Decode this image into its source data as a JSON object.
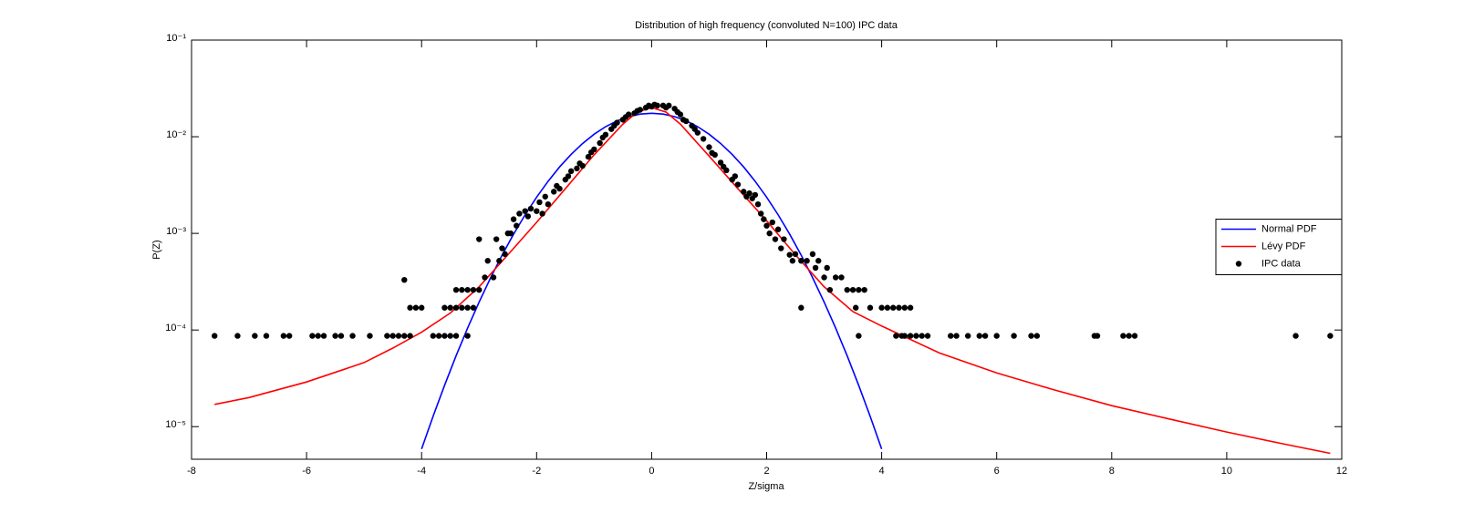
{
  "chart_data": {
    "type": "line",
    "title": "Distribution of high frequency (convoluted N=100) IPC data",
    "xlabel": "Z/sigma",
    "ylabel": "P(Z)",
    "xlim": [
      -8,
      12
    ],
    "xticks": [
      -8,
      -6,
      -4,
      -2,
      0,
      2,
      4,
      6,
      8,
      10,
      12
    ],
    "ylim": [
      4.6e-06,
      0.1
    ],
    "log_y": true,
    "yticks": [
      {
        "value": 1e-05,
        "label": "10⁻⁵"
      },
      {
        "value": 0.0001,
        "label": "10⁻⁴"
      },
      {
        "value": 0.001,
        "label": "10⁻³"
      },
      {
        "value": 0.01,
        "label": "10⁻²"
      },
      {
        "value": 0.1,
        "label": "10⁻¹"
      }
    ],
    "grid": false,
    "legend": "east",
    "series": [
      {
        "name": "Normal PDF",
        "color": "#0000ff",
        "style": "line",
        "x": [
          -4.0,
          -3.8,
          -3.6,
          -3.4,
          -3.2,
          -3.0,
          -2.8,
          -2.6,
          -2.4,
          -2.2,
          -2.0,
          -1.8,
          -1.6,
          -1.4,
          -1.2,
          -1.0,
          -0.8,
          -0.6,
          -0.4,
          -0.2,
          0,
          0.2,
          0.4,
          0.6,
          0.8,
          1.0,
          1.2,
          1.4,
          1.6,
          1.8,
          2.0,
          2.2,
          2.4,
          2.6,
          2.8,
          3.0,
          3.2,
          3.4,
          3.6,
          3.8,
          4.0
        ],
        "values": [
          5.87e-06,
          1.28e-05,
          2.68e-05,
          5.41e-05,
          0.0001046,
          0.0001944,
          0.000347,
          0.000596,
          0.000982,
          0.001556,
          0.002368,
          0.00346,
          0.00487,
          0.00657,
          0.00852,
          0.01061,
          0.01271,
          0.01462,
          0.01615,
          0.01715,
          0.0175,
          0.01715,
          0.01615,
          0.01462,
          0.01271,
          0.01061,
          0.00852,
          0.00657,
          0.00487,
          0.00346,
          0.002368,
          0.001556,
          0.000982,
          0.000596,
          0.000347,
          0.0001944,
          0.0001046,
          5.41e-05,
          2.68e-05,
          1.28e-05,
          5.87e-06
        ]
      },
      {
        "name": "Lévy PDF",
        "color": "#ff0000",
        "style": "line",
        "x": [
          -7.6,
          -7,
          -6,
          -5,
          -4.5,
          -4,
          -3.5,
          -3,
          -2.5,
          -2,
          -1.5,
          -1,
          -0.5,
          -0.25,
          0,
          0.25,
          0.5,
          1,
          1.5,
          2,
          2.5,
          3,
          3.5,
          4,
          5,
          6,
          7,
          8,
          9,
          10,
          11,
          11.8
        ],
        "values": [
          1.7e-05,
          2e-05,
          2.9e-05,
          4.6e-05,
          6.5e-05,
          9.5e-05,
          0.00015,
          0.00028,
          0.0006,
          0.0013,
          0.0029,
          0.0065,
          0.0135,
          0.018,
          0.02,
          0.018,
          0.0135,
          0.0063,
          0.0029,
          0.00135,
          0.0006,
          0.00028,
          0.000155,
          0.00011,
          5.8e-05,
          3.6e-05,
          2.4e-05,
          1.65e-05,
          1.2e-05,
          8.8e-06,
          6.6e-06,
          5.3e-06
        ]
      },
      {
        "name": "IPC data",
        "color": "#000000",
        "style": "marker",
        "x": [
          -7.6,
          -7.2,
          -6.9,
          -6.7,
          -6.4,
          -6.3,
          -5.9,
          -5.8,
          -5.7,
          -5.5,
          -5.4,
          -5.2,
          -4.9,
          -4.6,
          -4.5,
          -4.4,
          -4.3,
          -4.2,
          -3.8,
          -3.7,
          -3.6,
          -3.5,
          -3.4,
          -3.2,
          -4.3,
          -4.2,
          -4.1,
          -4.0,
          -3.6,
          -3.5,
          -3.4,
          -3.3,
          -3.2,
          -3.1,
          -3.4,
          -3.3,
          -3.2,
          -3.1,
          -3.0,
          -2.9,
          -2.75,
          -2.55,
          -2.65,
          -2.85,
          -2.7,
          -2.6,
          -3.0,
          -2.45,
          -2.5,
          -2.4,
          -2.35,
          -2.3,
          -2.2,
          -2.15,
          -2.1,
          -2.0,
          -1.95,
          -1.9,
          -1.85,
          -1.8,
          -1.7,
          -1.65,
          -1.6,
          -1.5,
          -1.45,
          -1.4,
          -1.3,
          -1.25,
          -1.2,
          -1.1,
          -1.05,
          -1.0,
          -0.9,
          -0.85,
          -0.8,
          -0.7,
          -0.65,
          -0.6,
          -0.5,
          -0.45,
          -0.4,
          -0.3,
          -0.25,
          -0.2,
          -0.1,
          -0.05,
          0,
          0.05,
          0.1,
          0.2,
          0.25,
          0.3,
          0.4,
          0.45,
          0.5,
          0.55,
          0.6,
          0.7,
          0.75,
          0.8,
          0.9,
          1.0,
          1.05,
          1.1,
          1.2,
          1.25,
          1.3,
          1.4,
          1.45,
          1.5,
          1.6,
          1.65,
          1.7,
          1.75,
          1.8,
          1.85,
          1.9,
          1.95,
          2.0,
          2.05,
          2.1,
          2.15,
          2.2,
          2.25,
          2.3,
          2.4,
          2.45,
          2.5,
          2.6,
          2.7,
          2.8,
          2.85,
          2.9,
          3.0,
          3.05,
          3.1,
          3.2,
          3.3,
          3.4,
          3.5,
          3.6,
          3.7,
          2.6,
          3.55,
          3.8,
          4.0,
          4.1,
          4.2,
          4.3,
          4.4,
          4.5,
          3.6,
          4.25,
          4.35,
          4.4,
          4.5,
          4.6,
          4.7,
          4.8,
          5.2,
          5.3,
          5.5,
          5.7,
          5.8,
          6.0,
          6.3,
          6.6,
          6.7,
          7.7,
          7.75,
          8.2,
          8.3,
          8.4,
          11.2,
          11.8
        ],
        "values": [
          8.7e-05,
          8.7e-05,
          8.7e-05,
          8.7e-05,
          8.7e-05,
          8.7e-05,
          8.7e-05,
          8.7e-05,
          8.7e-05,
          8.7e-05,
          8.7e-05,
          8.7e-05,
          8.7e-05,
          8.7e-05,
          8.7e-05,
          8.7e-05,
          8.7e-05,
          8.7e-05,
          8.7e-05,
          8.7e-05,
          8.7e-05,
          8.7e-05,
          8.7e-05,
          8.7e-05,
          0.00033,
          0.00017,
          0.00017,
          0.00017,
          0.00017,
          0.00017,
          0.00017,
          0.00017,
          0.00017,
          0.00017,
          0.00026,
          0.00026,
          0.00026,
          0.00026,
          0.00026,
          0.00035,
          0.00035,
          0.00061,
          0.00052,
          0.00052,
          0.00087,
          0.0007,
          0.00087,
          0.001,
          0.001,
          0.0014,
          0.0012,
          0.0016,
          0.0017,
          0.0015,
          0.0018,
          0.0017,
          0.0021,
          0.0016,
          0.0024,
          0.002,
          0.0027,
          0.0031,
          0.0029,
          0.0036,
          0.0039,
          0.0044,
          0.0047,
          0.0053,
          0.005,
          0.0062,
          0.0069,
          0.0074,
          0.0086,
          0.0098,
          0.0105,
          0.012,
          0.013,
          0.014,
          0.015,
          0.016,
          0.017,
          0.0175,
          0.0185,
          0.019,
          0.02,
          0.021,
          0.0205,
          0.0215,
          0.021,
          0.021,
          0.02,
          0.021,
          0.0195,
          0.018,
          0.017,
          0.015,
          0.0145,
          0.013,
          0.012,
          0.011,
          0.0095,
          0.0078,
          0.0068,
          0.0065,
          0.0054,
          0.0049,
          0.0045,
          0.0036,
          0.0039,
          0.0032,
          0.0027,
          0.0024,
          0.0026,
          0.0023,
          0.0025,
          0.002,
          0.0016,
          0.0014,
          0.0012,
          0.001,
          0.0013,
          0.00087,
          0.0011,
          0.0007,
          0.00087,
          0.0006,
          0.00052,
          0.00061,
          0.00052,
          0.00052,
          0.00061,
          0.00044,
          0.00052,
          0.00035,
          0.00044,
          0.00026,
          0.00035,
          0.00035,
          0.00026,
          0.00026,
          0.00026,
          0.00026,
          0.00017,
          0.00017,
          0.00017,
          0.00017,
          0.00017,
          0.00017,
          0.00017,
          0.00017,
          0.00017,
          8.7e-05,
          8.7e-05,
          8.7e-05,
          8.7e-05,
          8.7e-05,
          8.7e-05,
          8.7e-05,
          8.7e-05,
          8.7e-05,
          8.7e-05,
          8.7e-05,
          8.7e-05,
          8.7e-05,
          8.7e-05,
          8.7e-05,
          8.7e-05,
          8.7e-05,
          8.7e-05,
          8.7e-05,
          8.7e-05,
          8.7e-05,
          8.7e-05,
          8.7e-05,
          8.7e-05
        ]
      }
    ]
  }
}
